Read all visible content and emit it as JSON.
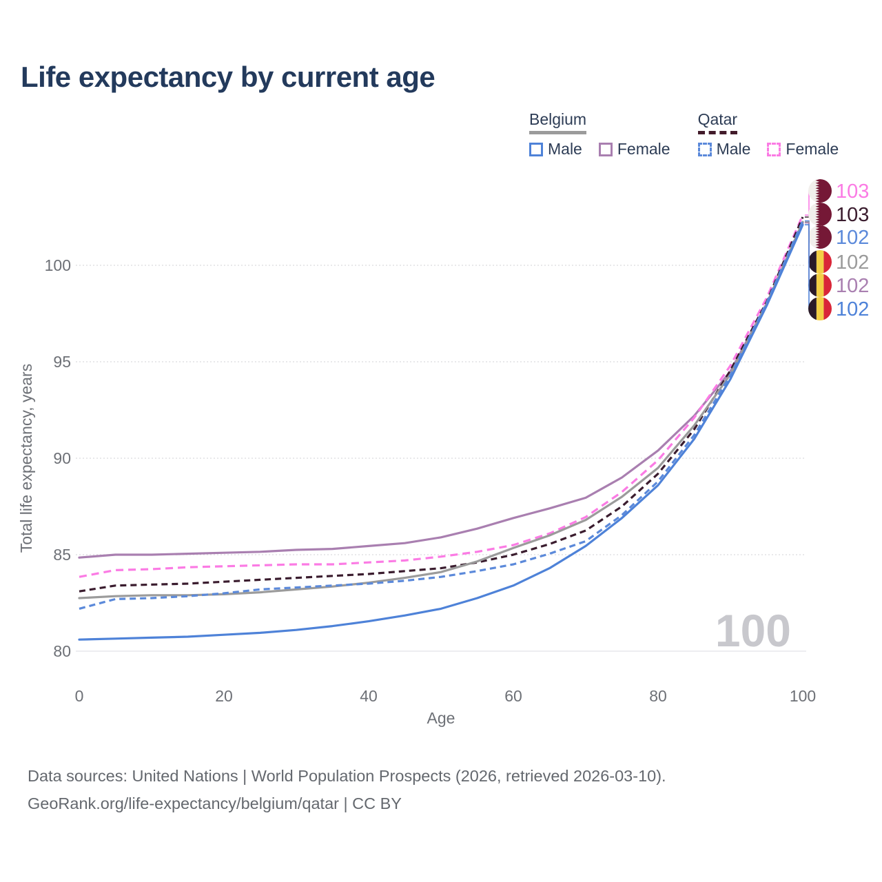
{
  "title": "Life expectancy by current age",
  "legend": {
    "groups": [
      {
        "id": "belgium",
        "label": "Belgium",
        "underline_color": "#9b9b9b",
        "underline_style": "solid",
        "items": [
          {
            "series": "belgium-male",
            "label": "Male"
          },
          {
            "series": "belgium-female",
            "label": "Female"
          }
        ]
      },
      {
        "id": "qatar",
        "label": "Qatar",
        "underline_color": "#421b2a",
        "underline_style": "dashed",
        "items": [
          {
            "series": "qatar-male",
            "label": "Male"
          },
          {
            "series": "qatar-female",
            "label": "Female"
          }
        ]
      }
    ]
  },
  "chart_data": {
    "type": "line",
    "title": "Life expectancy by current age",
    "xlabel": "Age",
    "ylabel": "Total life expectancy, years",
    "x": [
      0,
      5,
      10,
      15,
      20,
      25,
      30,
      35,
      40,
      45,
      50,
      55,
      60,
      65,
      70,
      75,
      80,
      85,
      90,
      95,
      100
    ],
    "xticks": [
      0,
      20,
      40,
      60,
      80,
      100
    ],
    "yticks": [
      80,
      85,
      90,
      95,
      100
    ],
    "xlim": [
      0,
      100
    ],
    "ylim": [
      79.5,
      103.5
    ],
    "grid": "horizontal-dotted",
    "legend_position": "top-right",
    "age_counter_watermark": "100",
    "draw_order": [
      "belgium-female",
      "qatar-female",
      "qatar-total",
      "belgium-total",
      "qatar-male",
      "belgium-male"
    ],
    "series": [
      {
        "id": "qatar-female",
        "name": "Qatar Female",
        "country": "Qatar",
        "sex": "Female",
        "color": "#fb7be4",
        "dash": "11 7",
        "flag": "qatar",
        "end_label": "103",
        "values": [
          83.85,
          84.2,
          84.25,
          84.35,
          84.4,
          84.45,
          84.5,
          84.5,
          84.6,
          84.7,
          84.9,
          85.15,
          85.5,
          86.1,
          86.95,
          88.25,
          89.9,
          92.1,
          94.8,
          98.3,
          102.6
        ]
      },
      {
        "id": "qatar-total",
        "name": "Qatar",
        "country": "Qatar",
        "sex": "Both",
        "color": "#3a1c2e",
        "dash": "9 6",
        "flag": "qatar",
        "end_label": "103",
        "values": [
          83.1,
          83.4,
          83.45,
          83.5,
          83.6,
          83.7,
          83.8,
          83.9,
          84.0,
          84.15,
          84.3,
          84.6,
          85.0,
          85.55,
          86.25,
          87.5,
          89.2,
          91.5,
          94.55,
          98.1,
          102.5
        ]
      },
      {
        "id": "qatar-male",
        "name": "Qatar Male",
        "country": "Qatar",
        "sex": "Male",
        "color": "#5b89da",
        "dash": "9 6",
        "flag": "qatar",
        "end_label": "102",
        "values": [
          82.2,
          82.7,
          82.75,
          82.85,
          83.0,
          83.2,
          83.3,
          83.4,
          83.5,
          83.65,
          83.85,
          84.15,
          84.5,
          85.05,
          85.7,
          87.05,
          88.8,
          91.2,
          94.3,
          98.05,
          102.3
        ]
      },
      {
        "id": "belgium-total",
        "name": "Belgium",
        "country": "Belgium",
        "sex": "Both",
        "color": "#9b9b9b",
        "dash": null,
        "flag": "belgium",
        "end_label": "102",
        "values": [
          82.75,
          82.85,
          82.9,
          82.9,
          82.95,
          83.05,
          83.2,
          83.35,
          83.55,
          83.8,
          84.1,
          84.65,
          85.35,
          86.0,
          86.8,
          88.0,
          89.5,
          91.7,
          94.35,
          98.0,
          102.25
        ]
      },
      {
        "id": "belgium-female",
        "name": "Belgium Female",
        "country": "Belgium",
        "sex": "Female",
        "color": "#a97fb0",
        "dash": null,
        "flag": "belgium",
        "end_label": "102",
        "values": [
          84.85,
          85.0,
          85.0,
          85.05,
          85.1,
          85.15,
          85.25,
          85.3,
          85.45,
          85.6,
          85.9,
          86.35,
          86.9,
          87.4,
          87.95,
          89.0,
          90.4,
          92.2,
          94.5,
          98.0,
          102.2
        ]
      },
      {
        "id": "belgium-male",
        "name": "Belgium Male",
        "country": "Belgium",
        "sex": "Male",
        "color": "#4e82d8",
        "dash": null,
        "flag": "belgium",
        "end_label": "102",
        "values": [
          80.6,
          80.65,
          80.7,
          80.75,
          80.85,
          80.95,
          81.1,
          81.3,
          81.55,
          81.85,
          82.2,
          82.75,
          83.4,
          84.3,
          85.45,
          86.9,
          88.6,
          91.0,
          94.1,
          97.9,
          102.1
        ]
      }
    ],
    "flag_colors": {
      "qatar_maroon": "#751836",
      "flag_white": "#f2efec",
      "belgium_black": "#2a1a28",
      "belgium_yellow": "#f3cf45",
      "belgium_red": "#d92638"
    }
  },
  "footer": {
    "line1": "Data sources: United Nations | World Population Prospects (2026, retrieved 2026-03-10).",
    "line2": "GeoRank.org/life-expectancy/belgium/qatar | CC BY"
  }
}
